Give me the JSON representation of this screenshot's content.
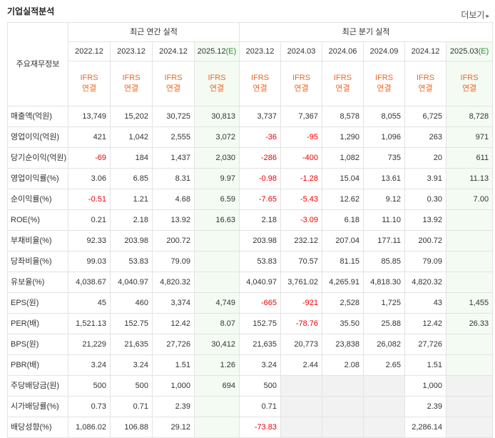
{
  "header": {
    "title": "기업실적분석",
    "more_label": "더보기",
    "more_icon": "chevron-right-icon"
  },
  "table": {
    "corner_label": "주요재무정보",
    "annual_group": "최근 연간 실적",
    "quarter_group": "최근 분기 실적",
    "periods": [
      {
        "label": "2022.12",
        "est": false
      },
      {
        "label": "2023.12",
        "est": false
      },
      {
        "label": "2024.12",
        "est": false
      },
      {
        "label": "2025.12",
        "suffix": "(E)",
        "est": true
      },
      {
        "label": "2023.12",
        "est": false
      },
      {
        "label": "2024.03",
        "est": false
      },
      {
        "label": "2024.06",
        "est": false
      },
      {
        "label": "2024.09",
        "est": false
      },
      {
        "label": "2024.12",
        "est": false
      },
      {
        "label": "2025.03",
        "suffix": "(E)",
        "est": true
      }
    ],
    "ifrs_line1": "IFRS",
    "ifrs_line2": "연결",
    "rows": [
      {
        "label": "매출액(억원)",
        "group_start": true,
        "values": [
          "13,749",
          "15,202",
          "30,725",
          "30,813",
          "3,737",
          "7,367",
          "8,578",
          "8,055",
          "6,725",
          "8,728"
        ]
      },
      {
        "label": "영업이익(억원)",
        "values": [
          "421",
          "1,042",
          "2,555",
          "3,072",
          "-36",
          "-95",
          "1,290",
          "1,096",
          "263",
          "971"
        ]
      },
      {
        "label": "당기순이익(억원)",
        "values": [
          "-69",
          "184",
          "1,437",
          "2,030",
          "-286",
          "-400",
          "1,082",
          "735",
          "20",
          "611"
        ]
      },
      {
        "label": "영업이익률(%)",
        "group_start": true,
        "values": [
          "3.06",
          "6.85",
          "8.31",
          "9.97",
          "-0.98",
          "-1.28",
          "15.04",
          "13.61",
          "3.91",
          "11.13"
        ]
      },
      {
        "label": "순이익률(%)",
        "values": [
          "-0.51",
          "1.21",
          "4.68",
          "6.59",
          "-7.65",
          "-5.43",
          "12.62",
          "9.12",
          "0.30",
          "7.00"
        ]
      },
      {
        "label": "ROE(%)",
        "values": [
          "0.21",
          "2.18",
          "13.92",
          "16.63",
          "2.18",
          "-3.09",
          "6.18",
          "11.10",
          "13.92",
          ""
        ]
      },
      {
        "label": "부채비율(%)",
        "group_start": true,
        "values": [
          "92.33",
          "203.98",
          "200.72",
          "",
          "203.98",
          "232.12",
          "207.04",
          "177.11",
          "200.72",
          ""
        ]
      },
      {
        "label": "당좌비율(%)",
        "values": [
          "99.03",
          "53.83",
          "79.09",
          "",
          "53.83",
          "70.57",
          "81.15",
          "85.85",
          "79.09",
          ""
        ]
      },
      {
        "label": "유보율(%)",
        "values": [
          "4,038.67",
          "4,040.97",
          "4,820.32",
          "",
          "4,040.97",
          "3,761.02",
          "4,265.91",
          "4,818.30",
          "4,820.32",
          ""
        ]
      },
      {
        "label": "EPS(원)",
        "group_start": true,
        "values": [
          "45",
          "460",
          "3,374",
          "4,749",
          "-665",
          "-921",
          "2,528",
          "1,725",
          "43",
          "1,455"
        ]
      },
      {
        "label": "PER(배)",
        "values": [
          "1,521.13",
          "152.75",
          "12.42",
          "8.07",
          "152.75",
          "-78.76",
          "35.50",
          "25.88",
          "12.42",
          "26.33"
        ]
      },
      {
        "label": "BPS(원)",
        "values": [
          "21,229",
          "21,635",
          "27,726",
          "30,412",
          "21,635",
          "20,773",
          "23,838",
          "26,082",
          "27,726",
          ""
        ]
      },
      {
        "label": "PBR(배)",
        "values": [
          "3.24",
          "3.24",
          "1.51",
          "1.26",
          "3.24",
          "2.44",
          "2.08",
          "2.65",
          "1.51",
          ""
        ]
      },
      {
        "label": "주당배당금(원)",
        "group_start": true,
        "values": [
          "500",
          "500",
          "1,000",
          "694",
          "500",
          "",
          "",
          "",
          "1,000",
          ""
        ],
        "gray": [
          5,
          6,
          7,
          9
        ]
      },
      {
        "label": "시가배당률(%)",
        "values": [
          "0.73",
          "0.71",
          "2.39",
          "",
          "0.71",
          "",
          "",
          "",
          "2.39",
          ""
        ],
        "gray": [
          5,
          6,
          7,
          9
        ]
      },
      {
        "label": "배당성향(%)",
        "values": [
          "1,086.02",
          "106.88",
          "29.12",
          "",
          "-73.83",
          "",
          "",
          "",
          "2,286.14",
          ""
        ],
        "gray": [
          5,
          6,
          7,
          9
        ]
      }
    ]
  }
}
